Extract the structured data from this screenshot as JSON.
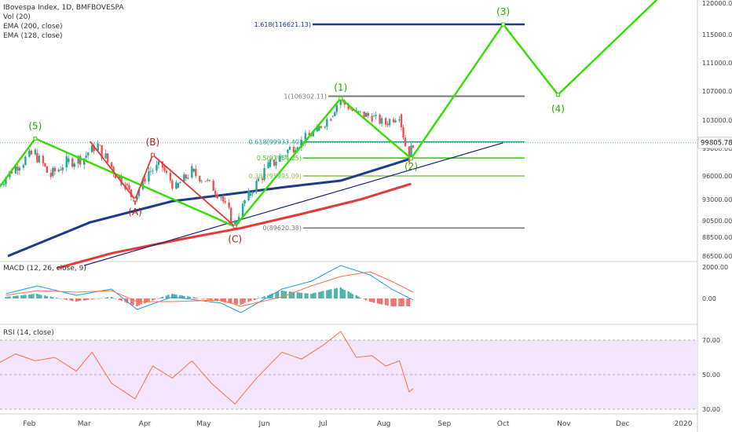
{
  "header": {
    "symbol_line": "IBovespa Index, 1D, BMFBOVESPA",
    "indicators": [
      "Vol (20)",
      "EMA (200, close)",
      "EMA (128, close)"
    ]
  },
  "colors": {
    "up": "#26a69a",
    "down": "#ef5350",
    "wave": "#33dd00",
    "abc": "#e53935",
    "ema200": "#1e3a8a",
    "ema128": "#e53935",
    "trend": "#1a237e",
    "rsi_fill": "#f3e5fb",
    "macd_line": "#2196f3",
    "signal_line": "#ff7043"
  },
  "price_axis": {
    "ticks": [
      "120000.00",
      "115000.00",
      "111000.00",
      "107000.00",
      "103000.00",
      "99000.00",
      "96000.00",
      "93000.00",
      "90500.00",
      "88500.00",
      "86500.00"
    ],
    "current": "99805.78"
  },
  "time_axis": [
    "Feb",
    "Mar",
    "Apr",
    "May",
    "Jun",
    "Jul",
    "Aug",
    "Sep",
    "Oct",
    "Nov",
    "Dec",
    "2020"
  ],
  "macd": {
    "label": "MACD (12, 26, close, 9)",
    "ticks": [
      "2000.00",
      "0.00"
    ]
  },
  "rsi": {
    "label": "RSI (14, close)",
    "ticks": [
      "70.00",
      "50.00",
      "30.00"
    ]
  },
  "chart_data": {
    "type": "line",
    "title": "IBovespa Index, 1D, BMFBOVESPA",
    "fib_levels": [
      {
        "label": "1.618(116621.13)",
        "value": 116621.13
      },
      {
        "label": "1(106302.11)",
        "value": 106302.11
      },
      {
        "label": "0.618(99933.40)",
        "value": 99933.4
      },
      {
        "label": "0.5(97964.25)",
        "value": 97964.25
      },
      {
        "label": "0.382(95995.09)",
        "value": 95995.09
      },
      {
        "label": "0(89620.38)",
        "value": 89620.38
      }
    ],
    "wave_labels": [
      "(5)",
      "(1)",
      "(2)",
      "(3)",
      "(4)"
    ],
    "abc_labels": [
      "(A)",
      "(B)",
      "(C)"
    ],
    "wave_path": [
      {
        "date": "2019-01-15",
        "value": 94000
      },
      {
        "date": "2019-02-04",
        "value": 100400
      },
      {
        "date": "2019-05-17",
        "value": 89800
      },
      {
        "date": "2019-07-10",
        "value": 106000
      },
      {
        "date": "2019-08-15",
        "value": 97900
      },
      {
        "date": "2019-10-01",
        "value": 116621
      },
      {
        "date": "2019-10-29",
        "value": 106500
      },
      {
        "date": "2019-12-20",
        "value": 121000
      }
    ],
    "abc_path": [
      {
        "date": "2019-03-04",
        "value": 100000
      },
      {
        "date": "2019-03-27",
        "value": 93000
      },
      {
        "date": "2019-04-05",
        "value": 98300
      },
      {
        "date": "2019-05-17",
        "value": 89800
      }
    ],
    "ema200": [
      {
        "date": "2019-01-21",
        "value": 86500
      },
      {
        "date": "2019-03-04",
        "value": 90300
      },
      {
        "date": "2019-04-15",
        "value": 92800
      },
      {
        "date": "2019-05-15",
        "value": 93700
      },
      {
        "date": "2019-06-12",
        "value": 94600
      },
      {
        "date": "2019-07-10",
        "value": 95400
      },
      {
        "date": "2019-08-15",
        "value": 97900
      }
    ],
    "ema128": [
      {
        "date": "2019-02-15",
        "value": 85200
      },
      {
        "date": "2019-03-15",
        "value": 86800
      },
      {
        "date": "2019-04-20",
        "value": 88300
      },
      {
        "date": "2019-05-20",
        "value": 89600
      },
      {
        "date": "2019-06-20",
        "value": 91300
      },
      {
        "date": "2019-07-20",
        "value": 93000
      },
      {
        "date": "2019-08-15",
        "value": 95000
      }
    ],
    "trendline": [
      {
        "date": "2019-03-01",
        "value": 85500
      },
      {
        "date": "2019-10-01",
        "value": 99800
      }
    ],
    "price_close": [
      {
        "date": "2019-01-15",
        "value": 94500
      },
      {
        "date": "2019-01-25",
        "value": 97000
      },
      {
        "date": "2019-02-04",
        "value": 98500
      },
      {
        "date": "2019-02-12",
        "value": 96000
      },
      {
        "date": "2019-02-20",
        "value": 97500
      },
      {
        "date": "2019-03-01",
        "value": 98000
      },
      {
        "date": "2019-03-08",
        "value": 99500
      },
      {
        "date": "2019-03-15",
        "value": 97000
      },
      {
        "date": "2019-03-22",
        "value": 95000
      },
      {
        "date": "2019-03-27",
        "value": 93000
      },
      {
        "date": "2019-04-03",
        "value": 96500
      },
      {
        "date": "2019-04-10",
        "value": 97000
      },
      {
        "date": "2019-04-17",
        "value": 94500
      },
      {
        "date": "2019-04-25",
        "value": 96500
      },
      {
        "date": "2019-05-02",
        "value": 95500
      },
      {
        "date": "2019-05-10",
        "value": 93500
      },
      {
        "date": "2019-05-17",
        "value": 90000
      },
      {
        "date": "2019-05-24",
        "value": 93500
      },
      {
        "date": "2019-06-03",
        "value": 97000
      },
      {
        "date": "2019-06-12",
        "value": 98500
      },
      {
        "date": "2019-06-20",
        "value": 100000
      },
      {
        "date": "2019-06-28",
        "value": 101500
      },
      {
        "date": "2019-07-05",
        "value": 103500
      },
      {
        "date": "2019-07-10",
        "value": 105800
      },
      {
        "date": "2019-07-18",
        "value": 104000
      },
      {
        "date": "2019-07-26",
        "value": 103500
      },
      {
        "date": "2019-08-02",
        "value": 102500
      },
      {
        "date": "2019-08-09",
        "value": 103800
      },
      {
        "date": "2019-08-14",
        "value": 98000
      },
      {
        "date": "2019-08-16",
        "value": 99806
      }
    ],
    "macd_values": [
      {
        "date": "2019-01-20",
        "macd": 300,
        "signal": 200
      },
      {
        "date": "2019-02-05",
        "macd": 800,
        "signal": 500
      },
      {
        "date": "2019-02-25",
        "macd": 200,
        "signal": 400
      },
      {
        "date": "2019-03-15",
        "macd": 600,
        "signal": 500
      },
      {
        "date": "2019-03-28",
        "macd": -700,
        "signal": -200
      },
      {
        "date": "2019-04-15",
        "macd": 100,
        "signal": -200
      },
      {
        "date": "2019-05-10",
        "macd": -300,
        "signal": -100
      },
      {
        "date": "2019-05-20",
        "macd": -900,
        "signal": -500
      },
      {
        "date": "2019-06-10",
        "macd": 600,
        "signal": 100
      },
      {
        "date": "2019-06-25",
        "macd": 1100,
        "signal": 800
      },
      {
        "date": "2019-07-10",
        "macd": 2100,
        "signal": 1400
      },
      {
        "date": "2019-07-25",
        "macd": 1500,
        "signal": 1700
      },
      {
        "date": "2019-08-05",
        "macd": 600,
        "signal": 1100
      },
      {
        "date": "2019-08-16",
        "macd": -100,
        "signal": 400
      }
    ],
    "rsi_values": [
      {
        "date": "2019-01-15",
        "value": 56
      },
      {
        "date": "2019-01-25",
        "value": 62
      },
      {
        "date": "2019-02-04",
        "value": 58
      },
      {
        "date": "2019-02-14",
        "value": 60
      },
      {
        "date": "2019-02-25",
        "value": 52
      },
      {
        "date": "2019-03-05",
        "value": 63
      },
      {
        "date": "2019-03-15",
        "value": 45
      },
      {
        "date": "2019-03-27",
        "value": 36
      },
      {
        "date": "2019-04-05",
        "value": 55
      },
      {
        "date": "2019-04-15",
        "value": 48
      },
      {
        "date": "2019-04-25",
        "value": 58
      },
      {
        "date": "2019-05-05",
        "value": 45
      },
      {
        "date": "2019-05-17",
        "value": 33
      },
      {
        "date": "2019-05-28",
        "value": 48
      },
      {
        "date": "2019-06-10",
        "value": 63
      },
      {
        "date": "2019-06-20",
        "value": 59
      },
      {
        "date": "2019-07-01",
        "value": 67
      },
      {
        "date": "2019-07-10",
        "value": 75
      },
      {
        "date": "2019-07-18",
        "value": 60
      },
      {
        "date": "2019-07-26",
        "value": 61
      },
      {
        "date": "2019-08-02",
        "value": 55
      },
      {
        "date": "2019-08-09",
        "value": 58
      },
      {
        "date": "2019-08-14",
        "value": 40
      },
      {
        "date": "2019-08-16",
        "value": 42
      }
    ],
    "ylim": [
      85000,
      121000
    ]
  }
}
